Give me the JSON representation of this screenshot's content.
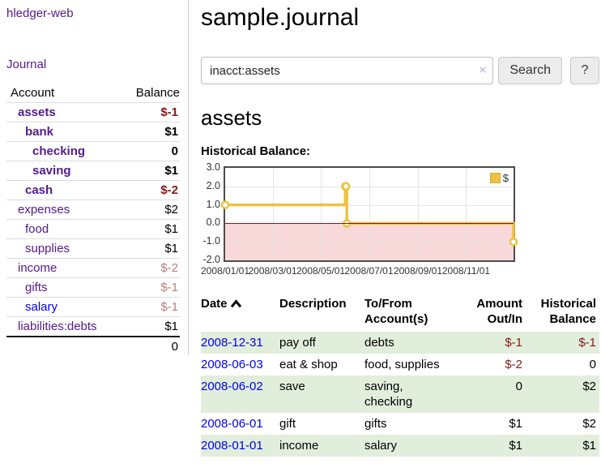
{
  "app": {
    "title": "hledger-web",
    "nav_journal": "Journal"
  },
  "colors": {
    "link_purple": "#551A8B",
    "link_blue": "#0000EE",
    "negative_strong": "#8b1616",
    "negative_light": "#bd7b7b",
    "row_green": "#e1eedb",
    "chart_gold": "#edc240",
    "negative_region": "#f8d8d8",
    "zero_line": "#8b1a1a"
  },
  "sidebar": {
    "header": {
      "account": "Account",
      "balance": "Balance"
    },
    "accounts": [
      {
        "name": "assets",
        "depth": 1,
        "balance": "$-1",
        "bold": true,
        "negative": true
      },
      {
        "name": "bank",
        "depth": 2,
        "balance": "$1",
        "bold": true,
        "negative": false
      },
      {
        "name": "checking",
        "depth": 3,
        "balance": "0",
        "bold": true,
        "negative": false
      },
      {
        "name": "saving",
        "depth": 3,
        "balance": "$1",
        "bold": true,
        "negative": false
      },
      {
        "name": "cash",
        "depth": 2,
        "balance": "$-2",
        "bold": true,
        "negative": true
      },
      {
        "name": "expenses",
        "depth": 1,
        "balance": "$2",
        "bold": false,
        "negative": false
      },
      {
        "name": "food",
        "depth": 2,
        "balance": "$1",
        "bold": false,
        "negative": false
      },
      {
        "name": "supplies",
        "depth": 2,
        "balance": "$1",
        "bold": false,
        "negative": false
      },
      {
        "name": "income",
        "depth": 1,
        "balance": "$-2",
        "bold": false,
        "negative": true
      },
      {
        "name": "gifts",
        "depth": 2,
        "balance": "$-1",
        "bold": false,
        "negative": true
      },
      {
        "name": "salary",
        "depth": 2,
        "balance": "$-1",
        "bold": false,
        "negative": true,
        "blue": true
      },
      {
        "name": "liabilities:debts",
        "depth": 1,
        "balance": "$1",
        "bold": false,
        "negative": false
      }
    ],
    "total": "0"
  },
  "header": {
    "title": "sample.journal"
  },
  "search": {
    "value": "inacct:assets",
    "clear_icon": "×",
    "button_label": "Search",
    "help_label": "?"
  },
  "account_page": {
    "title": "assets",
    "chart_label": "Historical Balance:"
  },
  "chart_data": {
    "type": "line",
    "step": true,
    "title": "Historical Balance",
    "series": [
      {
        "name": "$",
        "color": "#edc240",
        "points": [
          [
            "2008-01-01",
            1
          ],
          [
            "2008-06-01",
            2
          ],
          [
            "2008-06-02",
            2
          ],
          [
            "2008-06-03",
            0
          ],
          [
            "2008-12-31",
            -1
          ]
        ]
      }
    ],
    "xlim": [
      "2008-01-01",
      "2008-12-31"
    ],
    "ylim": [
      -2,
      3
    ],
    "y_ticks": [
      3.0,
      2.0,
      1.0,
      0.0,
      -1.0,
      -2.0
    ],
    "x_ticks": [
      "2008/01/01",
      "2008/03/01",
      "2008/05/01",
      "2008/07/01",
      "2008/09/01",
      "2008/11/01"
    ],
    "grid": true,
    "legend": {
      "label": "$",
      "position": "top-right"
    }
  },
  "register": {
    "columns": {
      "date": "Date",
      "description": "Description",
      "accounts": "To/From Account(s)",
      "amount": "Amount Out/In",
      "balance": "Historical Balance"
    },
    "rows": [
      {
        "date": "2008-12-31",
        "description": "pay off",
        "accounts": "debts",
        "amount": "$-1",
        "balance": "$-1",
        "amount_negative": true,
        "balance_negative": true
      },
      {
        "date": "2008-06-03",
        "description": "eat & shop",
        "accounts": "food, supplies",
        "amount": "$-2",
        "balance": "0",
        "amount_negative": true,
        "balance_negative": false
      },
      {
        "date": "2008-06-02",
        "description": "save",
        "accounts": "saving, checking",
        "amount": "0",
        "balance": "$2",
        "amount_negative": false,
        "balance_negative": false
      },
      {
        "date": "2008-06-01",
        "description": "gift",
        "accounts": "gifts",
        "amount": "$1",
        "balance": "$2",
        "amount_negative": false,
        "balance_negative": false
      },
      {
        "date": "2008-01-01",
        "description": "income",
        "accounts": "salary",
        "amount": "$1",
        "balance": "$1",
        "amount_negative": false,
        "balance_negative": false
      }
    ]
  }
}
